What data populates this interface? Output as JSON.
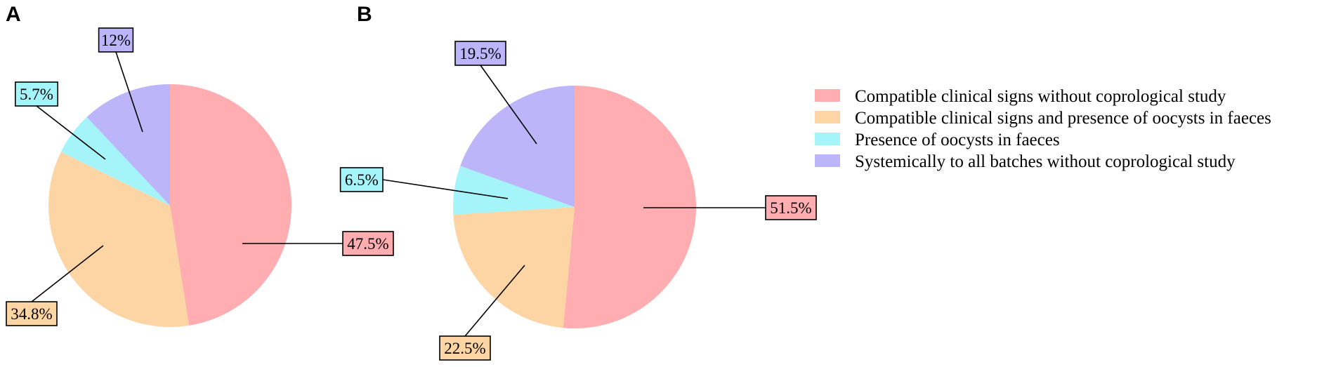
{
  "chart_data": {
    "type": "pie",
    "legend": {
      "placement": "right",
      "entries": [
        "Compatible clinical signs without coprological study",
        "Compatible clinical signs and presence of oocysts in faeces",
        "Presence of oocysts in faeces",
        "Systemically to all batches without coprological study"
      ]
    },
    "colors": [
      "#ffadb0",
      "#fdd5a5",
      "#a5f4f9",
      "#bdb5fa"
    ],
    "panels": [
      {
        "label": "A",
        "values": [
          47.5,
          34.8,
          5.7,
          12
        ],
        "labels": [
          "47.5%",
          "34.8%",
          "5.7%",
          "12%"
        ]
      },
      {
        "label": "B",
        "values": [
          51.5,
          22.5,
          6.5,
          19.5
        ],
        "labels": [
          "51.5%",
          "22.5%",
          "6.5%",
          "19.5%"
        ]
      }
    ]
  }
}
